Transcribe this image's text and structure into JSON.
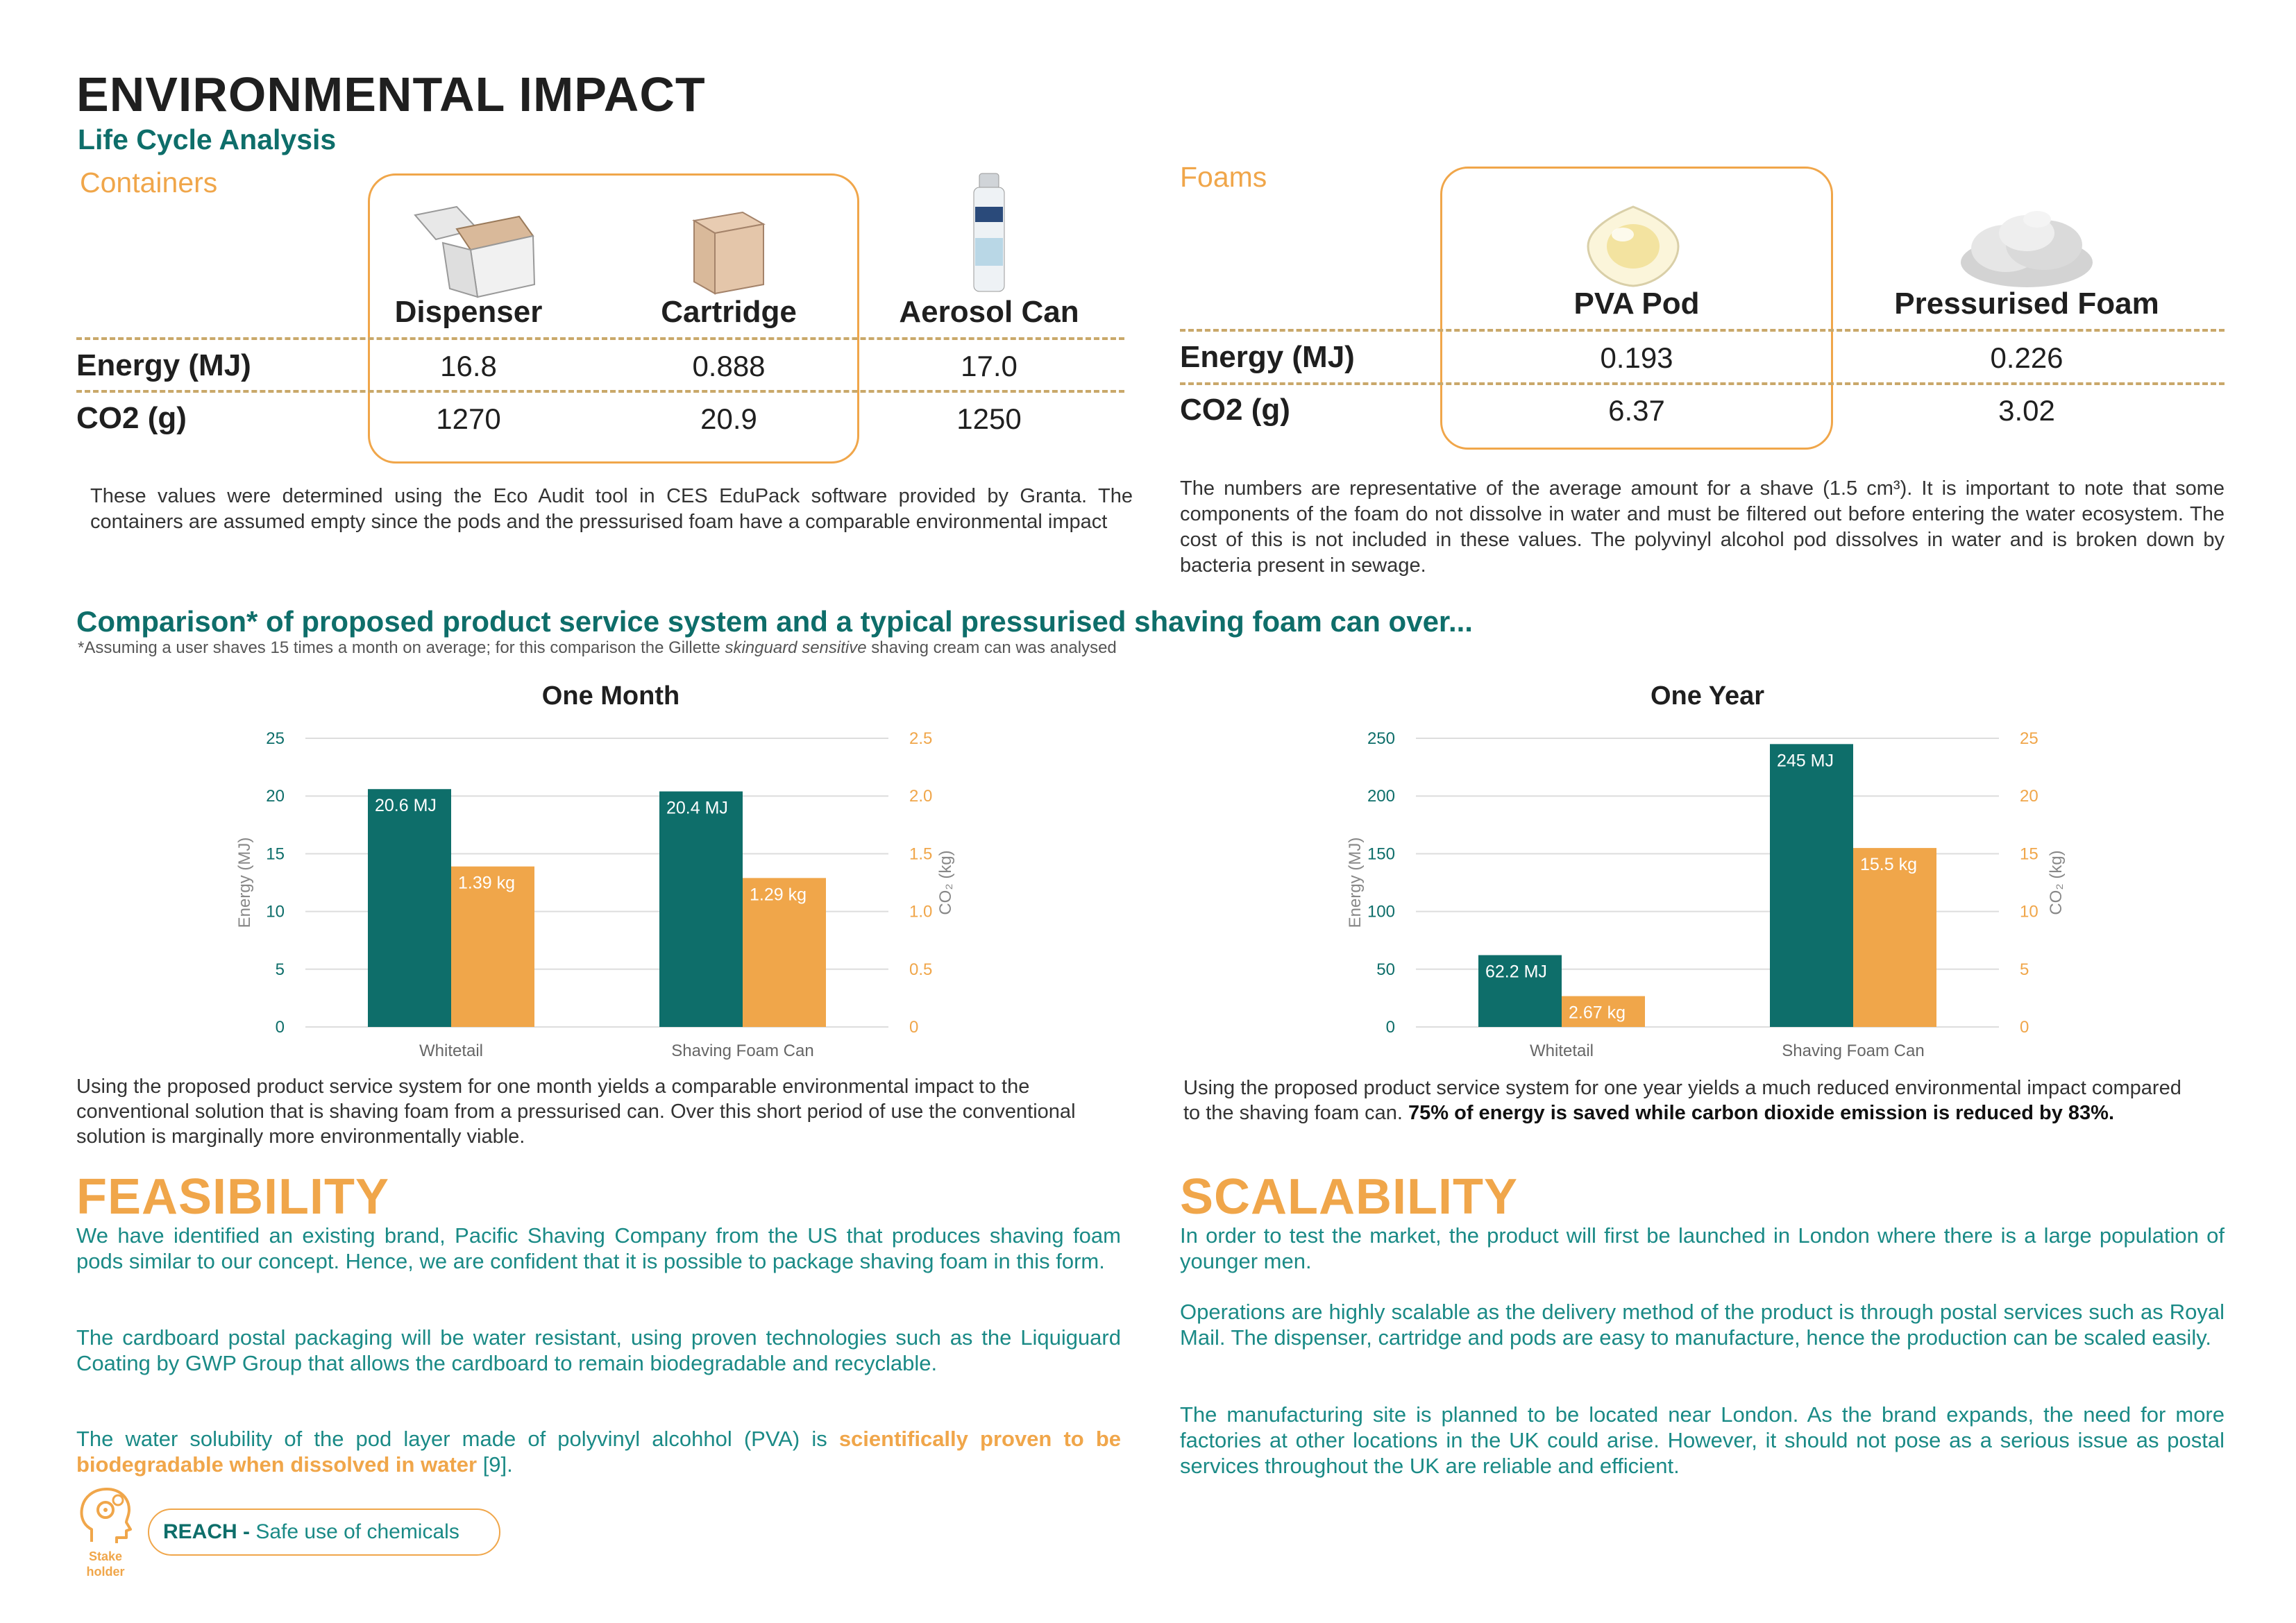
{
  "header": {
    "title": "ENVIRONMENTAL IMPACT",
    "subtitle": "Life Cycle Analysis"
  },
  "containers": {
    "section": "Containers",
    "columns": [
      "Dispenser",
      "Cartridge",
      "Aerosol Can"
    ],
    "rows": [
      {
        "label": "Energy (MJ)",
        "values": [
          "16.8",
          "0.888",
          "17.0"
        ]
      },
      {
        "label": "CO2 (g)",
        "values": [
          "1270",
          "20.9",
          "1250"
        ]
      }
    ],
    "note": "These values were determined using the Eco Audit tool in CES EduPack software provided by Granta. The containers are assumed empty since the pods and the pressurised foam have a comparable environmental impact"
  },
  "foams": {
    "section": "Foams",
    "columns": [
      "PVA Pod",
      "Pressurised Foam"
    ],
    "rows": [
      {
        "label": "Energy (MJ)",
        "values": [
          "0.193",
          "0.226"
        ]
      },
      {
        "label": "CO2 (g)",
        "values": [
          "6.37",
          "3.02"
        ]
      }
    ],
    "note": "The numbers are representative of the average amount for a shave (1.5 cm³). It is important to note that some components of the foam do not dissolve in water and must be filtered out before entering the water ecosystem. The cost of this is not included in these values. The polyvinyl alcohol pod dissolves in water and is broken down by bacteria present in sewage."
  },
  "comparison": {
    "title": "Comparison* of proposed product service system and a typical pressurised shaving foam can over...",
    "footnote_a": "*Assuming a user shaves 15 times a month on average; for this comparison the Gillette ",
    "footnote_em": "skinguard sensitive",
    "footnote_b": " shaving cream can was analysed",
    "month_text": "Using the proposed product service system for one month yields a comparable environmental impact to the conventional solution that is shaving foam from a pressurised can. Over this short period of use the conventional solution is marginally more environmentally viable.",
    "year_text_a": "Using the proposed product service system for one year yields a much reduced environmental impact compared to the shaving foam can. ",
    "year_text_b": "75% of energy is saved while carbon dioxide emission is reduced by 83%."
  },
  "chart_data": [
    {
      "type": "bar",
      "title": "One Month",
      "categories": [
        "Whitetail",
        "Shaving Foam Can"
      ],
      "ylabel": "Energy (MJ)",
      "y2label": "CO₂ (kg)",
      "ylim": [
        0,
        25
      ],
      "y2lim": [
        0,
        2.5
      ],
      "yticks": [
        "0",
        "5",
        "10",
        "15",
        "20",
        "25"
      ],
      "y2ticks": [
        "0",
        "0.5",
        "1.0",
        "1.5",
        "2.0",
        "2.5"
      ],
      "series": [
        {
          "values": [
            20.6,
            20.4
          ],
          "labels": [
            "20.6 MJ",
            "20.4 MJ"
          ],
          "color": "#0e6e6a",
          "axis": "left"
        },
        {
          "values": [
            1.39,
            1.29
          ],
          "labels": [
            "1.39 kg",
            "1.29 kg"
          ],
          "color": "#f0a64a",
          "axis": "right"
        }
      ],
      "grid": true
    },
    {
      "type": "bar",
      "title": "One Year",
      "categories": [
        "Whitetail",
        "Shaving Foam Can"
      ],
      "ylabel": "Energy (MJ)",
      "y2label": "CO₂ (kg)",
      "ylim": [
        0,
        250
      ],
      "y2lim": [
        0,
        25
      ],
      "yticks": [
        "0",
        "50",
        "100",
        "150",
        "200",
        "250"
      ],
      "y2ticks": [
        "0",
        "5",
        "10",
        "15",
        "20",
        "25"
      ],
      "series": [
        {
          "values": [
            62.2,
            245
          ],
          "labels": [
            "62.2 MJ",
            "245 MJ"
          ],
          "color": "#0e6e6a",
          "axis": "left"
        },
        {
          "values": [
            2.67,
            15.5
          ],
          "labels": [
            "2.67 kg",
            "15.5 kg"
          ],
          "color": "#f0a64a",
          "axis": "right"
        }
      ],
      "grid": true
    }
  ],
  "feasibility": {
    "heading": "FEASIBILITY",
    "p1": "We have identified an existing brand, Pacific Shaving Company from the US that produces shaving foam pods similar to our concept. Hence, we are confident that it is possible to package shaving foam in this form.",
    "p2": "The cardboard postal packaging will be water resistant, using proven technologies such as the Liquiguard Coating by GWP Group that allows the cardboard to remain biodegradable and recyclable.",
    "p3_a": "The water solubility of the pod layer made of polyvinyl alcohhol (PVA) is ",
    "p3_hl": "scientifically proven to be biodegradable when dissolved in water",
    "p3_b": " [9].",
    "stake_label": "Stake holder",
    "pill_key": "REACH - ",
    "pill_value": "Safe use of chemicals"
  },
  "scalability": {
    "heading": "SCALABILITY",
    "p1": "In order to test the market, the product will first be launched in London where there is a large population of younger men.",
    "p2": "Operations are highly scalable as the delivery method of the product is through postal services such as Royal Mail. The dispenser, cartridge and pods are easy to manufacture, hence the production can be scaled easily.",
    "p3": "The manufacturing site is planned to be located near London. As the brand expands, the need for more factories at other locations in the UK could arise. However, it should not pose as a serious issue as postal services throughout the UK are reliable and efficient."
  },
  "colors": {
    "teal": "#0e6e6a",
    "orange": "#f0a64a"
  },
  "icons": [
    "dispenser-image",
    "cartridge-box-image",
    "aerosol-can-image",
    "pva-pod-image",
    "foam-image",
    "stakeholder-head-gear-icon"
  ]
}
